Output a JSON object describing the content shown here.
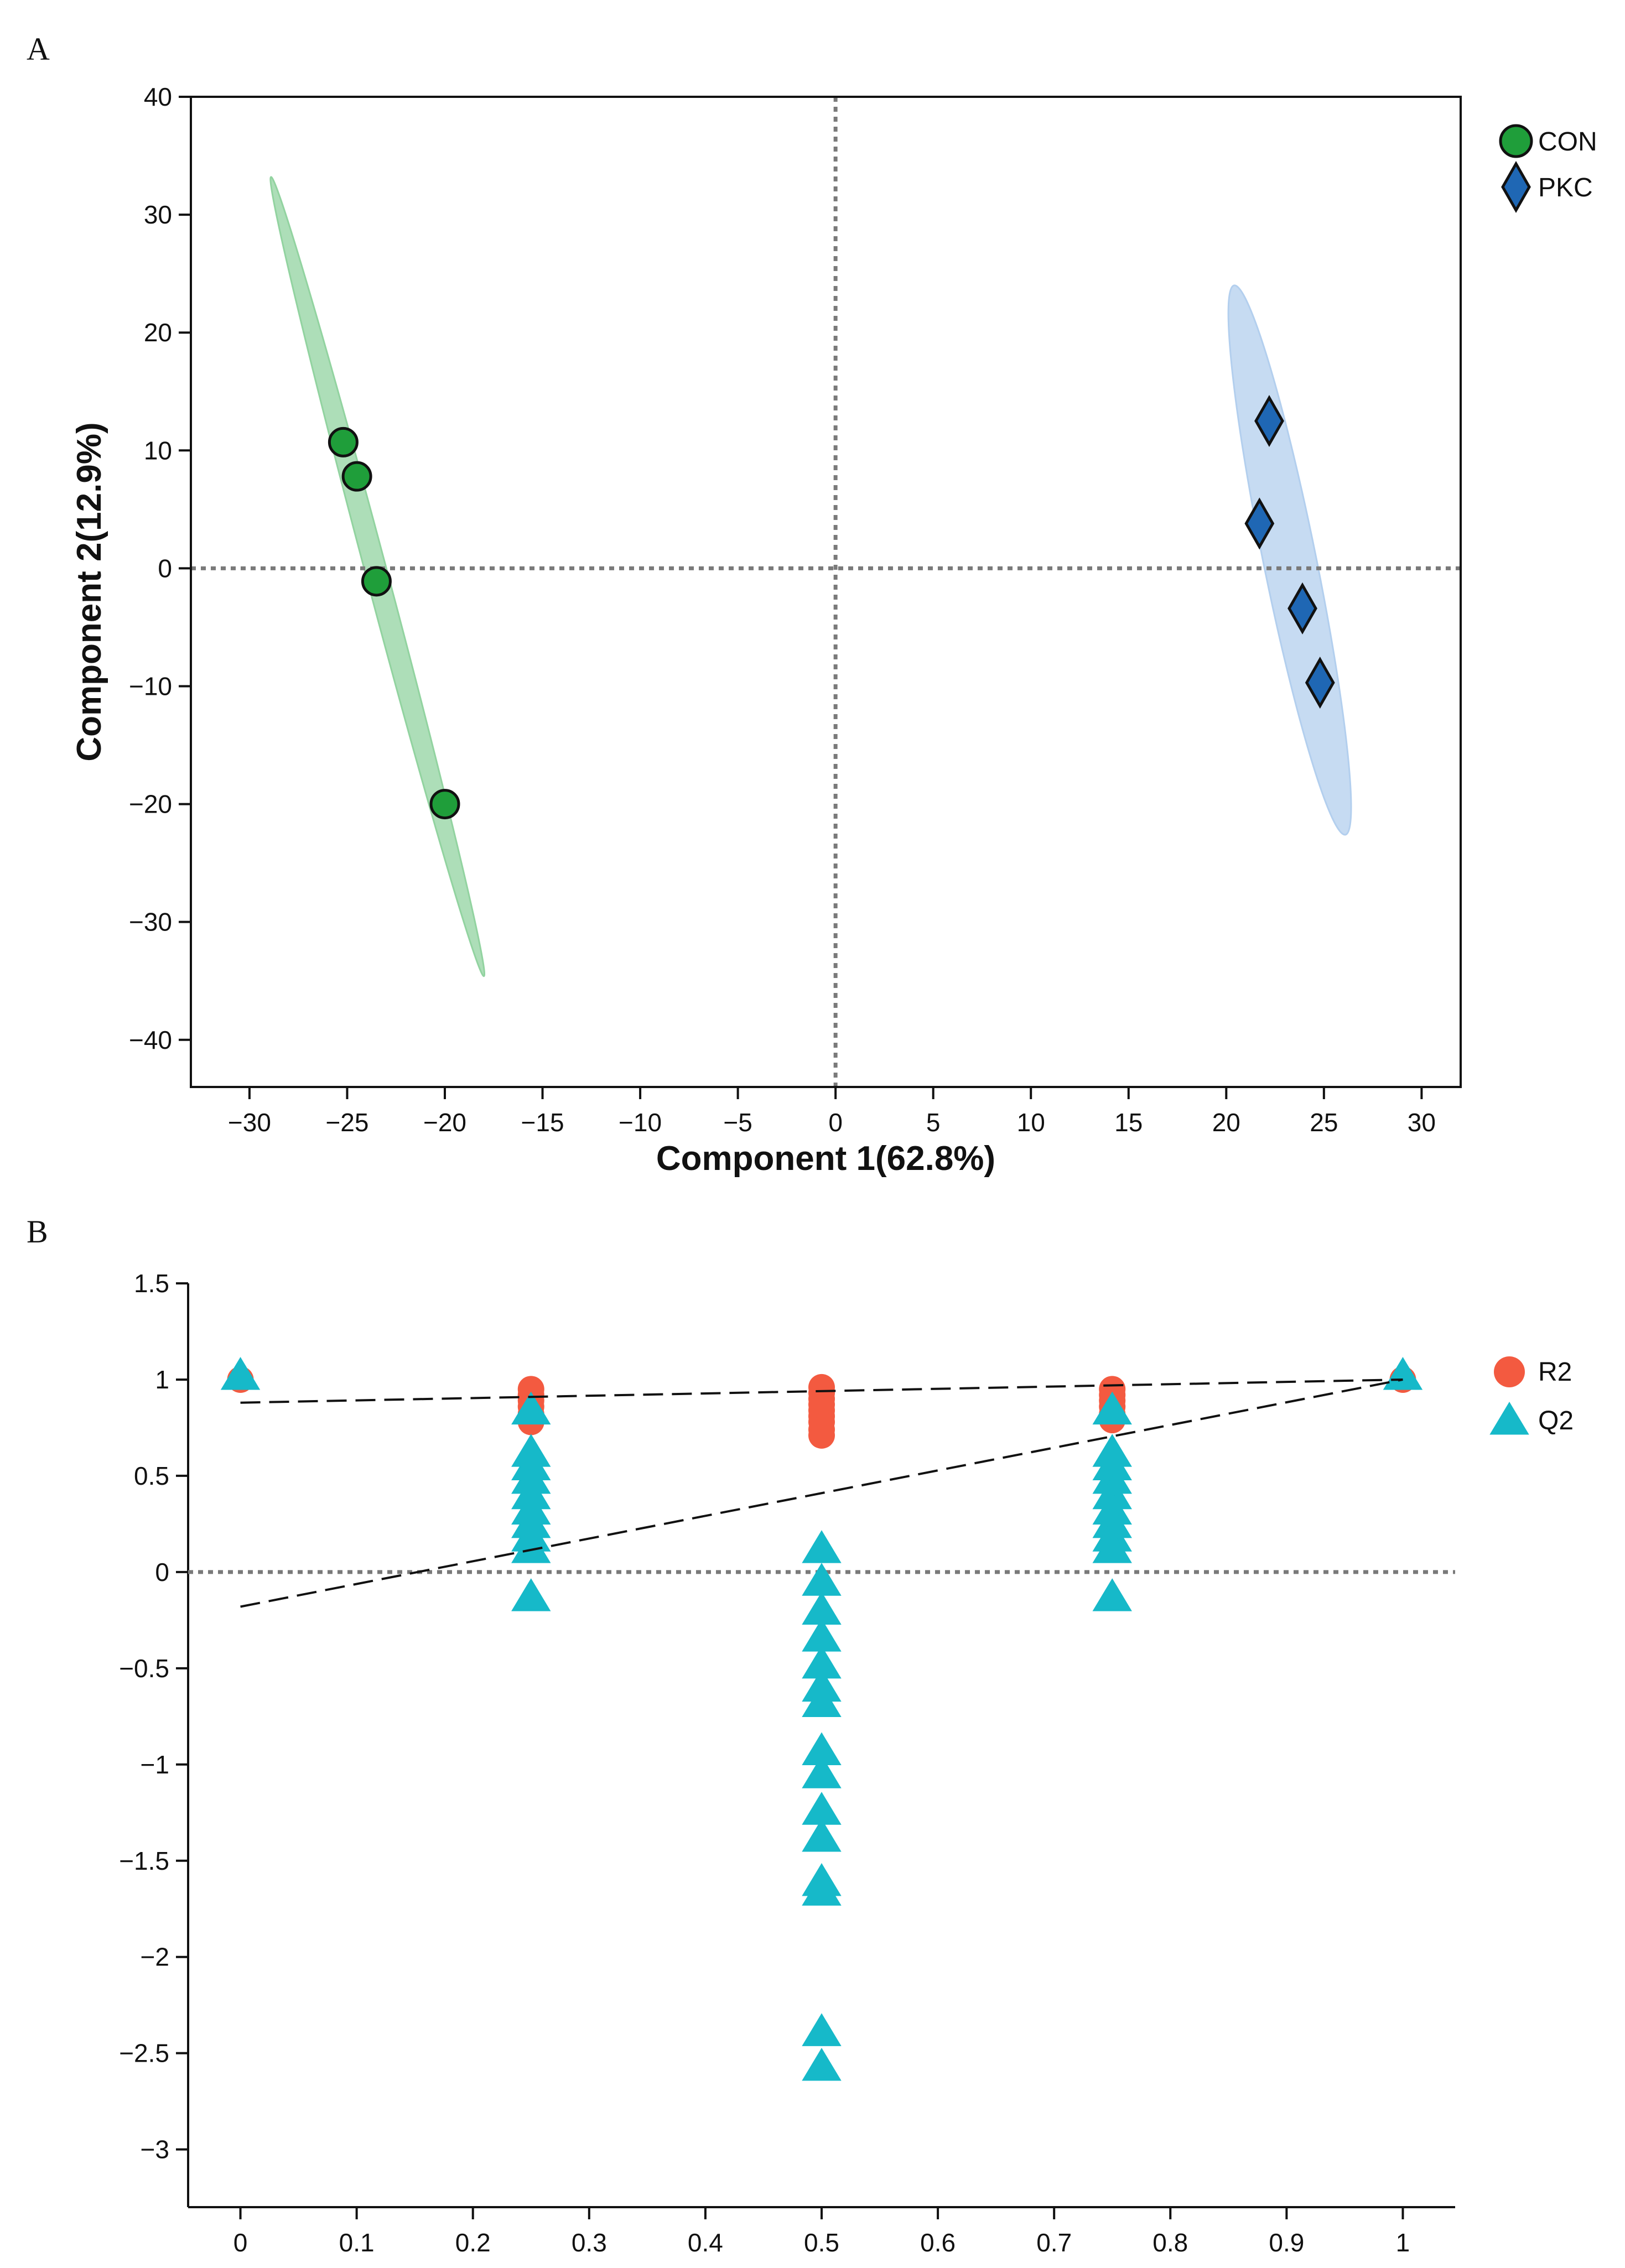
{
  "chart_data": [
    {
      "panel": "A",
      "type": "scatter",
      "xlabel": "Component 1(62.8%)",
      "ylabel": "Component 2(12.9%)",
      "xlim": [
        -33,
        32
      ],
      "ylim": [
        -44,
        40
      ],
      "xticks": [
        -30,
        -25,
        -20,
        -15,
        -10,
        -5,
        0,
        5,
        10,
        15,
        20,
        25,
        30
      ],
      "yticks": [
        40,
        30,
        20,
        10,
        0,
        -10,
        -20,
        -30,
        -40
      ],
      "reference_lines": {
        "x": 0,
        "y": 0,
        "style": "dotted"
      },
      "series": [
        {
          "name": "CON",
          "marker": "circle",
          "color": "#1f9e3a",
          "ellipse_color": "#92d3a0",
          "points": [
            [
              -25.2,
              10.7
            ],
            [
              -24.5,
              7.8
            ],
            [
              -23.5,
              -1.1
            ],
            [
              -20.0,
              -20.0
            ]
          ],
          "ellipse": {
            "center": [
              -23.5,
              -0.6
            ],
            "endpoints": [
              [
                -28.9,
                33.2
              ],
              [
                -18.0,
                -34.6
              ]
            ],
            "half_width": 0.55
          }
        },
        {
          "name": "PKC",
          "marker": "diamond",
          "color": "#1f67b4",
          "ellipse_color": "#b3cfee",
          "points": [
            [
              22.2,
              12.5
            ],
            [
              21.7,
              3.8
            ],
            [
              23.9,
              -3.4
            ],
            [
              24.8,
              -9.7
            ]
          ],
          "ellipse": {
            "center": [
              23.2,
              0.8
            ],
            "endpoints": [
              [
                20.4,
                24.0
              ],
              [
                26.1,
                -22.6
              ]
            ],
            "half_width": 1.35
          }
        }
      ]
    },
    {
      "panel": "B",
      "type": "scatter",
      "xlabel": "",
      "ylabel": "",
      "xlim": [
        -0.045,
        1.045
      ],
      "ylim": [
        -3.3,
        1.5
      ],
      "xticks": [
        0,
        0.1,
        0.2,
        0.3,
        0.4,
        0.5,
        0.6,
        0.7,
        0.8,
        0.9,
        1
      ],
      "yticks": [
        1.5,
        1,
        0.5,
        0,
        -0.5,
        -1,
        -1.5,
        -2,
        -2.5,
        -3
      ],
      "reference_lines": {
        "y": 0,
        "style": "dotted"
      },
      "series": [
        {
          "name": "R2",
          "marker": "circle",
          "color": "#f35a40",
          "points": [
            [
              0,
              1.0
            ],
            [
              0.25,
              0.95
            ],
            [
              0.25,
              0.92
            ],
            [
              0.25,
              0.89
            ],
            [
              0.25,
              0.86
            ],
            [
              0.25,
              0.82
            ],
            [
              0.25,
              0.78
            ],
            [
              0.5,
              0.96
            ],
            [
              0.5,
              0.93
            ],
            [
              0.5,
              0.9
            ],
            [
              0.5,
              0.87
            ],
            [
              0.5,
              0.84
            ],
            [
              0.5,
              0.81
            ],
            [
              0.5,
              0.78
            ],
            [
              0.5,
              0.74
            ],
            [
              0.5,
              0.71
            ],
            [
              0.75,
              0.95
            ],
            [
              0.75,
              0.92
            ],
            [
              0.75,
              0.89
            ],
            [
              0.75,
              0.86
            ],
            [
              0.75,
              0.82
            ],
            [
              0.75,
              0.79
            ],
            [
              1,
              1.0
            ]
          ],
          "regression": {
            "x": [
              0,
              1
            ],
            "y": [
              0.88,
              1.0
            ]
          }
        },
        {
          "name": "Q2",
          "marker": "triangle",
          "color": "#16b9c9",
          "points": [
            [
              0,
              1.02
            ],
            [
              0.25,
              0.84
            ],
            [
              0.25,
              0.62
            ],
            [
              0.25,
              0.55
            ],
            [
              0.25,
              0.48
            ],
            [
              0.25,
              0.4
            ],
            [
              0.25,
              0.32
            ],
            [
              0.25,
              0.25
            ],
            [
              0.25,
              0.18
            ],
            [
              0.25,
              0.12
            ],
            [
              0.25,
              -0.13
            ],
            [
              0.5,
              0.12
            ],
            [
              0.5,
              -0.05
            ],
            [
              0.5,
              -0.2
            ],
            [
              0.5,
              -0.34
            ],
            [
              0.5,
              -0.48
            ],
            [
              0.5,
              -0.6
            ],
            [
              0.5,
              -0.68
            ],
            [
              0.5,
              -0.93
            ],
            [
              0.5,
              -1.05
            ],
            [
              0.5,
              -1.24
            ],
            [
              0.5,
              -1.38
            ],
            [
              0.5,
              -1.61
            ],
            [
              0.5,
              -1.66
            ],
            [
              0.5,
              -2.39
            ],
            [
              0.5,
              -2.57
            ],
            [
              0.75,
              0.84
            ],
            [
              0.75,
              0.62
            ],
            [
              0.75,
              0.55
            ],
            [
              0.75,
              0.48
            ],
            [
              0.75,
              0.4
            ],
            [
              0.75,
              0.32
            ],
            [
              0.75,
              0.25
            ],
            [
              0.75,
              0.18
            ],
            [
              0.75,
              0.12
            ],
            [
              0.75,
              -0.13
            ],
            [
              1,
              1.02
            ]
          ],
          "regression": {
            "x": [
              0,
              1
            ],
            "y": [
              -0.18,
              1.0
            ]
          }
        }
      ]
    }
  ]
}
